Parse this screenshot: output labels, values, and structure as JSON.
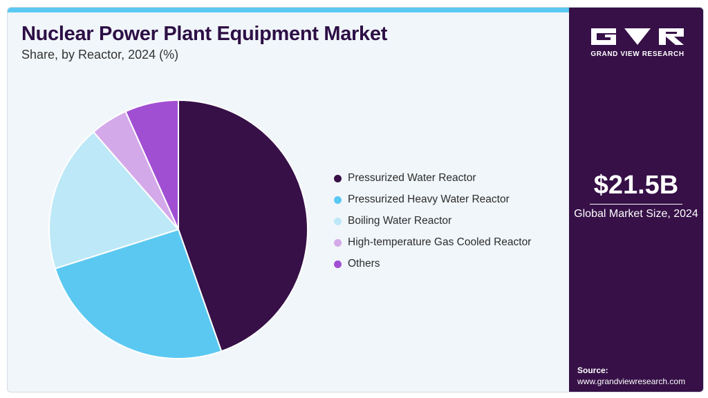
{
  "header": {
    "title": "Nuclear Power Plant Equipment Market",
    "subtitle": "Share, by Reactor, 2024 (%)"
  },
  "chart_data": {
    "type": "pie",
    "title": "Nuclear Power Plant Equipment Market",
    "subtitle": "Share, by Reactor, 2024 (%)",
    "legend_position": "right",
    "categories": [
      "Pressurized Water Reactor",
      "Pressurized Heavy Water Reactor",
      "Boiling Water Reactor",
      "High-temperature Gas Cooled Reactor",
      "Others"
    ],
    "values": [
      44.6,
      25.5,
      18.5,
      4.7,
      6.7
    ],
    "colors": [
      "#361047",
      "#5bc8f2",
      "#bde8f7",
      "#d4a9ea",
      "#a04fd3"
    ]
  },
  "sidebar": {
    "brand_name": "GRAND VIEW RESEARCH",
    "market_size": "$21.5B",
    "market_size_label": "Global Market Size, 2024",
    "source_label": "Source:",
    "source_url": "www.grandviewresearch.com"
  }
}
